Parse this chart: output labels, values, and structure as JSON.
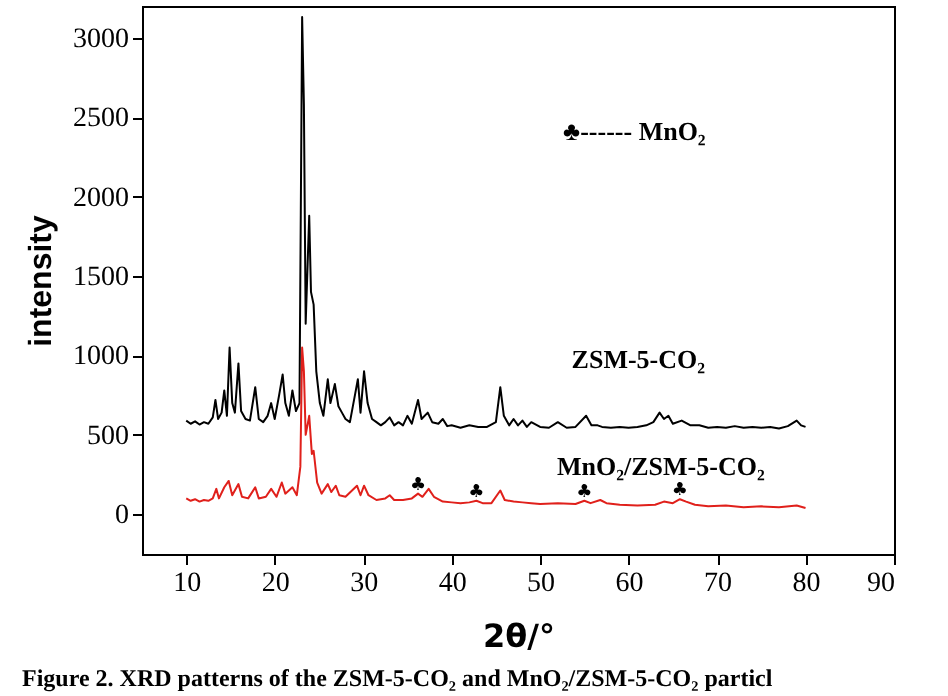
{
  "chart_data": {
    "type": "line",
    "xlabel": "2θ/°",
    "ylabel": "intensity",
    "xlim": [
      5,
      90
    ],
    "xticks": [
      10,
      20,
      30,
      40,
      50,
      60,
      70,
      80,
      90
    ],
    "ylim": [
      -250,
      3200
    ],
    "yticks": [
      0,
      500,
      1000,
      1500,
      2000,
      2500,
      3000
    ],
    "grid": false,
    "line_style": "solid",
    "marker": "none",
    "series": [
      {
        "name": "ZSM-5-CO₂",
        "color": "#000000",
        "x": [
          10,
          10.5,
          11,
          11.5,
          12,
          12.5,
          13,
          13.3,
          13.6,
          14,
          14.3,
          14.6,
          14.9,
          15.2,
          15.5,
          15.9,
          16.2,
          16.7,
          17.2,
          17.8,
          18.2,
          18.7,
          19.2,
          19.6,
          20,
          20.5,
          20.9,
          21.2,
          21.6,
          22,
          22.4,
          22.8,
          23.1,
          23.3,
          23.5,
          23.9,
          24.1,
          24.4,
          24.7,
          25.1,
          25.5,
          26,
          26.3,
          26.8,
          27.2,
          27.6,
          28,
          28.5,
          29.1,
          29.4,
          29.7,
          30.1,
          30.5,
          31,
          31.5,
          32,
          32.5,
          33,
          33.5,
          34,
          34.5,
          35,
          35.5,
          36.2,
          36.6,
          37.3,
          37.8,
          38.5,
          39,
          39.5,
          40,
          41,
          42,
          43,
          44,
          45,
          45.5,
          45.9,
          46.5,
          47,
          47.5,
          48,
          48.5,
          49,
          50,
          51,
          52,
          53,
          54,
          55.2,
          55.8,
          56.5,
          57,
          58,
          59,
          60,
          61,
          62,
          62.8,
          63.5,
          64,
          64.5,
          65,
          66,
          67,
          68,
          69,
          70,
          71,
          72,
          73,
          74,
          75,
          76,
          77,
          78,
          79,
          79.5,
          80
        ],
        "values": [
          590,
          570,
          585,
          565,
          580,
          570,
          610,
          720,
          600,
          640,
          780,
          620,
          1050,
          700,
          640,
          950,
          650,
          600,
          590,
          800,
          600,
          580,
          620,
          700,
          600,
          750,
          880,
          700,
          620,
          780,
          650,
          700,
          3130,
          2580,
          1200,
          1880,
          1400,
          1320,
          900,
          700,
          620,
          850,
          700,
          820,
          680,
          640,
          600,
          580,
          760,
          850,
          640,
          900,
          700,
          600,
          580,
          560,
          580,
          610,
          560,
          580,
          560,
          620,
          570,
          720,
          600,
          640,
          580,
          570,
          600,
          555,
          560,
          545,
          560,
          550,
          550,
          580,
          800,
          620,
          560,
          600,
          560,
          590,
          550,
          580,
          550,
          545,
          580,
          545,
          550,
          620,
          560,
          560,
          550,
          545,
          550,
          545,
          550,
          560,
          580,
          640,
          600,
          620,
          570,
          590,
          560,
          560,
          545,
          550,
          545,
          555,
          545,
          550,
          545,
          550,
          540,
          555,
          590,
          560,
          550
        ]
      },
      {
        "name": "MnO₂/ZSM-5-CO₂",
        "color": "#e0201b",
        "x": [
          10,
          10.5,
          11,
          11.5,
          12,
          12.5,
          13,
          13.4,
          13.7,
          14.3,
          14.8,
          15.2,
          15.9,
          16.3,
          17,
          17.8,
          18.2,
          19,
          19.6,
          20.2,
          20.8,
          21.2,
          22,
          22.5,
          22.9,
          23.1,
          23.3,
          23.5,
          23.9,
          24.2,
          24.4,
          24.8,
          25.3,
          26,
          26.4,
          26.9,
          27.3,
          28,
          29.3,
          29.7,
          30.1,
          30.6,
          31.5,
          32.5,
          33,
          33.5,
          34.5,
          35.5,
          36.2,
          36.7,
          37.4,
          38,
          39,
          40,
          41,
          42,
          42.8,
          43.5,
          44.5,
          45.5,
          46,
          47,
          48,
          49,
          50,
          52,
          54,
          55,
          55.7,
          56.8,
          57.5,
          59,
          61,
          63,
          64,
          65,
          65.8,
          66.5,
          67.5,
          69,
          71,
          73,
          75,
          77,
          79,
          80
        ],
        "values": [
          100,
          85,
          95,
          80,
          90,
          85,
          100,
          160,
          100,
          170,
          210,
          120,
          190,
          110,
          100,
          170,
          100,
          110,
          160,
          110,
          200,
          130,
          170,
          120,
          300,
          1050,
          900,
          500,
          620,
          380,
          400,
          200,
          130,
          190,
          140,
          180,
          120,
          110,
          180,
          120,
          180,
          120,
          90,
          100,
          120,
          90,
          90,
          100,
          130,
          110,
          160,
          110,
          80,
          75,
          70,
          75,
          85,
          70,
          70,
          150,
          90,
          80,
          75,
          70,
          65,
          70,
          65,
          85,
          70,
          90,
          70,
          60,
          55,
          60,
          80,
          70,
          95,
          80,
          60,
          50,
          55,
          45,
          50,
          45,
          55,
          40
        ]
      }
    ],
    "annotations": [
      "♣------ MnO₂",
      {
        "text": "♣",
        "x": 36.2,
        "y": 130
      },
      {
        "text": "♣",
        "x": 42.8,
        "y": 85
      },
      {
        "text": "♣",
        "x": 55,
        "y": 85
      },
      {
        "text": "♣",
        "x": 65.8,
        "y": 95
      },
      "Figure 2. XRD patterns of the ZSM-5-CO₂ and MnO₂/ZSM-5-CO₂ particl"
    ]
  }
}
